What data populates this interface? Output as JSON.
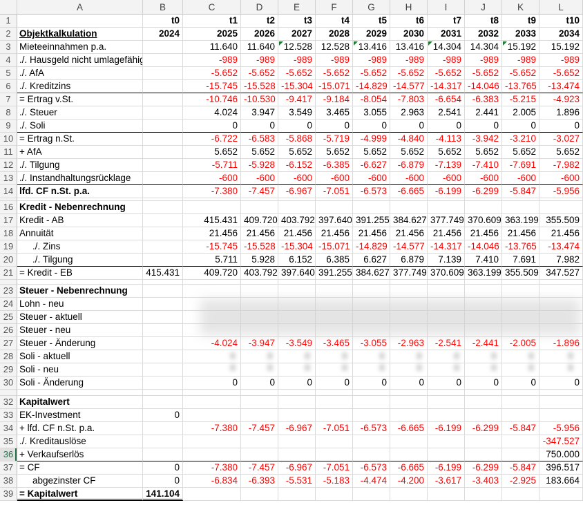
{
  "columns": [
    "A",
    "B",
    "C",
    "D",
    "E",
    "F",
    "G",
    "H",
    "I",
    "J",
    "K",
    "L"
  ],
  "colors": {
    "negative": "#ff0000",
    "comment_marker": "#1e7b34",
    "selected_row": "#217346"
  },
  "selected_row": 36,
  "rows": [
    {
      "n": 1,
      "label": "",
      "b": "t0",
      "v": [
        "t1",
        "t2",
        "t3",
        "t4",
        "t5",
        "t6",
        "t7",
        "t8",
        "t9",
        "t10"
      ],
      "bold": true
    },
    {
      "n": 2,
      "label": "Objektkalkulation",
      "b": "2024",
      "v": [
        "2025",
        "2026",
        "2027",
        "2028",
        "2029",
        "2030",
        "2031",
        "2032",
        "2033",
        "2034"
      ],
      "bold": true,
      "underline": true
    },
    {
      "n": 3,
      "label": "Mieteeinnahmen p.a.",
      "b": "",
      "v": [
        "11.640",
        "11.640",
        "12.528",
        "12.528",
        "13.416",
        "13.416",
        "14.304",
        "14.304",
        "15.192",
        "15.192"
      ],
      "markers": [
        2,
        4,
        6,
        8
      ]
    },
    {
      "n": 4,
      "label": "./. Hausgeld nicht umlagefähig",
      "b": "",
      "v": [
        "-989",
        "-989",
        "-989",
        "-989",
        "-989",
        "-989",
        "-989",
        "-989",
        "-989",
        "-989"
      ]
    },
    {
      "n": 5,
      "label": "./. AfA",
      "b": "",
      "v": [
        "-5.652",
        "-5.652",
        "-5.652",
        "-5.652",
        "-5.652",
        "-5.652",
        "-5.652",
        "-5.652",
        "-5.652",
        "-5.652"
      ]
    },
    {
      "n": 6,
      "label": "./. Kreditzins",
      "b": "",
      "v": [
        "-15.745",
        "-15.528",
        "-15.304",
        "-15.071",
        "-14.829",
        "-14.577",
        "-14.317",
        "-14.046",
        "-13.765",
        "-13.474"
      ],
      "border": true
    },
    {
      "n": 7,
      "label": "= Ertrag v.St.",
      "b": "",
      "v": [
        "-10.746",
        "-10.530",
        "-9.417",
        "-9.184",
        "-8.054",
        "-7.803",
        "-6.654",
        "-6.383",
        "-5.215",
        "-4.923"
      ]
    },
    {
      "n": 8,
      "label": "./. Steuer",
      "b": "",
      "v": [
        "4.024",
        "3.947",
        "3.549",
        "3.465",
        "3.055",
        "2.963",
        "2.541",
        "2.441",
        "2.005",
        "1.896"
      ]
    },
    {
      "n": 9,
      "label": "./. Soli",
      "b": "",
      "v": [
        "0",
        "0",
        "0",
        "0",
        "0",
        "0",
        "0",
        "0",
        "0",
        "0"
      ],
      "border": true
    },
    {
      "n": 10,
      "label": "= Ertrag n.St.",
      "b": "",
      "v": [
        "-6.722",
        "-6.583",
        "-5.868",
        "-5.719",
        "-4.999",
        "-4.840",
        "-4.113",
        "-3.942",
        "-3.210",
        "-3.027"
      ]
    },
    {
      "n": 11,
      "label": "+ AfA",
      "b": "",
      "v": [
        "5.652",
        "5.652",
        "5.652",
        "5.652",
        "5.652",
        "5.652",
        "5.652",
        "5.652",
        "5.652",
        "5.652"
      ]
    },
    {
      "n": 12,
      "label": "./. Tilgung",
      "b": "",
      "v": [
        "-5.711",
        "-5.928",
        "-6.152",
        "-6.385",
        "-6.627",
        "-6.879",
        "-7.139",
        "-7.410",
        "-7.691",
        "-7.982"
      ]
    },
    {
      "n": 13,
      "label": "./. Instandhaltungsrücklage",
      "b": "",
      "v": [
        "-600",
        "-600",
        "-600",
        "-600",
        "-600",
        "-600",
        "-600",
        "-600",
        "-600",
        "-600"
      ],
      "border": true
    },
    {
      "n": 14,
      "label": "lfd. CF n.St. p.a.",
      "b": "",
      "v": [
        "-7.380",
        "-7.457",
        "-6.967",
        "-7.051",
        "-6.573",
        "-6.665",
        "-6.199",
        "-6.299",
        "-5.847",
        "-5.956"
      ],
      "labelBold": true
    },
    {
      "n": 15,
      "label": "",
      "b": "",
      "v": [
        "",
        "",
        "",
        "",
        "",
        "",
        "",
        "",
        "",
        ""
      ],
      "h": 4
    },
    {
      "n": 16,
      "label": "Kredit - Nebenrechnung",
      "b": "",
      "v": [
        "",
        "",
        "",
        "",
        "",
        "",
        "",
        "",
        "",
        ""
      ],
      "labelBold": true
    },
    {
      "n": 17,
      "label": "Kredit - AB",
      "b": "",
      "v": [
        "415.431",
        "409.720",
        "403.792",
        "397.640",
        "391.255",
        "384.627",
        "377.749",
        "370.609",
        "363.199",
        "355.509"
      ]
    },
    {
      "n": 18,
      "label": "Annuität",
      "b": "",
      "v": [
        "21.456",
        "21.456",
        "21.456",
        "21.456",
        "21.456",
        "21.456",
        "21.456",
        "21.456",
        "21.456",
        "21.456"
      ]
    },
    {
      "n": 19,
      "label": "./. Zins",
      "b": "",
      "v": [
        "-15.745",
        "-15.528",
        "-15.304",
        "-15.071",
        "-14.829",
        "-14.577",
        "-14.317",
        "-14.046",
        "-13.765",
        "-13.474"
      ],
      "indent": true
    },
    {
      "n": 20,
      "label": "./. Tilgung",
      "b": "",
      "v": [
        "5.711",
        "5.928",
        "6.152",
        "6.385",
        "6.627",
        "6.879",
        "7.139",
        "7.410",
        "7.691",
        "7.982"
      ],
      "indent": true,
      "border": true
    },
    {
      "n": 21,
      "label": "= Kredit - EB",
      "b": "415.431",
      "v": [
        "409.720",
        "403.792",
        "397.640",
        "391.255",
        "384.627",
        "377.749",
        "370.609",
        "363.199",
        "355.509",
        "347.527"
      ]
    },
    {
      "n": 22,
      "label": "",
      "b": "",
      "v": [
        "",
        "",
        "",
        "",
        "",
        "",
        "",
        "",
        "",
        ""
      ],
      "h": 7
    },
    {
      "n": 23,
      "label": "Steuer - Nebenrechnung",
      "b": "",
      "v": [
        "",
        "",
        "",
        "",
        "",
        "",
        "",
        "",
        "",
        ""
      ],
      "labelBold": true
    },
    {
      "n": 24,
      "label": "Lohn - neu",
      "b": "",
      "v": [
        "",
        "",
        "",
        "",
        "",
        "",
        "",
        "",
        "",
        ""
      ]
    },
    {
      "n": 25,
      "label": "Steuer - aktuell",
      "b": "",
      "v": [
        "",
        "",
        "",
        "",
        "",
        "",
        "",
        "",
        "",
        ""
      ]
    },
    {
      "n": 26,
      "label": "Steuer - neu",
      "b": "",
      "v": [
        "",
        "",
        "",
        "",
        "",
        "",
        "",
        "",
        "",
        ""
      ]
    },
    {
      "n": 27,
      "label": "Steuer - Änderung",
      "b": "",
      "v": [
        "-4.024",
        "-3.947",
        "-3.549",
        "-3.465",
        "-3.055",
        "-2.963",
        "-2.541",
        "-2.441",
        "-2.005",
        "-1.896"
      ]
    },
    {
      "n": 28,
      "label": "Soli - aktuell",
      "b": "",
      "v": [
        "",
        "",
        "",
        "",
        "",
        "",
        "",
        "",
        "",
        ""
      ]
    },
    {
      "n": 29,
      "label": "Soli - neu",
      "b": "",
      "v": [
        "",
        "",
        "",
        "",
        "",
        "",
        "",
        "",
        "",
        ""
      ]
    },
    {
      "n": 30,
      "label": "Soli - Änderung",
      "b": "",
      "v": [
        "0",
        "0",
        "0",
        "0",
        "0",
        "0",
        "0",
        "0",
        "0",
        "0"
      ]
    },
    {
      "n": 31,
      "label": "",
      "b": "",
      "v": [
        "",
        "",
        "",
        "",
        "",
        "",
        "",
        "",
        "",
        ""
      ],
      "h": 9
    },
    {
      "n": 32,
      "label": "Kapitalwert",
      "b": "",
      "v": [
        "",
        "",
        "",
        "",
        "",
        "",
        "",
        "",
        "",
        ""
      ],
      "labelBold": true
    },
    {
      "n": 33,
      "label": "EK-Investment",
      "b": "0",
      "v": [
        "",
        "",
        "",
        "",
        "",
        "",
        "",
        "",
        "",
        ""
      ]
    },
    {
      "n": 34,
      "label": "+ lfd. CF n.St. p.a.",
      "b": "",
      "v": [
        "-7.380",
        "-7.457",
        "-6.967",
        "-7.051",
        "-6.573",
        "-6.665",
        "-6.199",
        "-6.299",
        "-5.847",
        "-5.956"
      ]
    },
    {
      "n": 35,
      "label": "./. Kreditauslöse",
      "b": "",
      "v": [
        "",
        "",
        "",
        "",
        "",
        "",
        "",
        "",
        "",
        "-347.527"
      ]
    },
    {
      "n": 36,
      "label": "+ Verkaufserlös",
      "b": "",
      "v": [
        "",
        "",
        "",
        "",
        "",
        "",
        "",
        "",
        "",
        "750.000"
      ],
      "border": true
    },
    {
      "n": 37,
      "label": "= CF",
      "b": "0",
      "v": [
        "-7.380",
        "-7.457",
        "-6.967",
        "-7.051",
        "-6.573",
        "-6.665",
        "-6.199",
        "-6.299",
        "-5.847",
        "396.517"
      ]
    },
    {
      "n": 38,
      "label": "abgezinster CF",
      "b": "0",
      "v": [
        "-6.834",
        "-6.393",
        "-5.531",
        "-5.183",
        "-4.474",
        "-4.200",
        "-3.617",
        "-3.403",
        "-2.925",
        "183.664"
      ],
      "indent": true
    },
    {
      "n": 39,
      "label": "= Kapitalwert",
      "b": "141.104",
      "v": [
        "",
        "",
        "",
        "",
        "",
        "",
        "",
        "",
        "",
        ""
      ],
      "labelBold": true,
      "bBold": true,
      "double": true
    }
  ]
}
